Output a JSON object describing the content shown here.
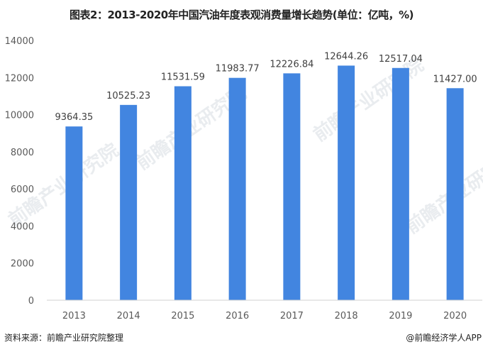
{
  "title": "图表2：2013-2020年中国汽油年度表观消费量增长趋势(单位：亿吨，%)",
  "source": "资料来源：前瞻产业研究院整理",
  "credit": "@前瞻经济学人APP",
  "watermark": "前瞻产业研究院",
  "colors": {
    "bar": "#4285e0",
    "axis": "#d0d0d0",
    "text": "#595959"
  },
  "chart_data": {
    "type": "bar",
    "title": "图表2：2013-2020年中国汽油年度表观消费量增长趋势(单位：亿吨，%)",
    "categories": [
      "2013",
      "2014",
      "2015",
      "2016",
      "2017",
      "2018",
      "2019",
      "2020"
    ],
    "values": [
      9364.35,
      10525.23,
      11531.59,
      11983.77,
      12226.84,
      12644.26,
      12517.04,
      11427.0
    ],
    "data_labels": [
      "9364.35",
      "10525.23",
      "11531.59",
      "11983.77",
      "12226.84",
      "12644.26",
      "12517.04",
      "11427.00"
    ],
    "ylim": [
      0,
      14000
    ],
    "yticks": [
      "0",
      "2000",
      "4000",
      "6000",
      "8000",
      "10000",
      "12000",
      "14000"
    ],
    "grid": false,
    "legend": "none"
  }
}
